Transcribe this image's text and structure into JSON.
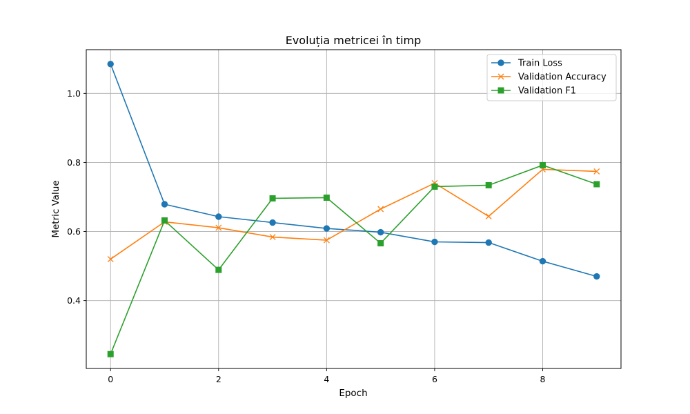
{
  "chart_data": {
    "type": "line",
    "title": "Evoluția metricei în timp",
    "xlabel": "Epoch",
    "ylabel": "Metric Value",
    "x": [
      0,
      1,
      2,
      3,
      4,
      5,
      6,
      7,
      8,
      9
    ],
    "xlim": [
      -0.45,
      9.45
    ],
    "ylim": [
      0.2035,
      1.1265
    ],
    "xticks": [
      0,
      2,
      4,
      6,
      8
    ],
    "yticks": [
      0.4,
      0.6,
      0.8,
      1.0
    ],
    "xtick_labels": [
      "0",
      "2",
      "4",
      "6",
      "8"
    ],
    "ytick_labels": [
      "0.4",
      "0.6",
      "0.8",
      "1.0"
    ],
    "grid": true,
    "legend_position": "top-right",
    "series": [
      {
        "name": "Train Loss",
        "color": "#1f77b4",
        "marker": "circle",
        "values": [
          1.085,
          0.679,
          0.643,
          0.626,
          0.609,
          0.598,
          0.57,
          0.568,
          0.514,
          0.47
        ]
      },
      {
        "name": "Validation Accuracy",
        "color": "#ff7f0e",
        "marker": "x",
        "values": [
          0.52,
          0.628,
          0.611,
          0.584,
          0.575,
          0.665,
          0.74,
          0.644,
          0.78,
          0.774
        ]
      },
      {
        "name": "Validation F1",
        "color": "#2ca02c",
        "marker": "square",
        "values": [
          0.245,
          0.632,
          0.489,
          0.696,
          0.698,
          0.566,
          0.73,
          0.734,
          0.792,
          0.737
        ]
      }
    ]
  }
}
